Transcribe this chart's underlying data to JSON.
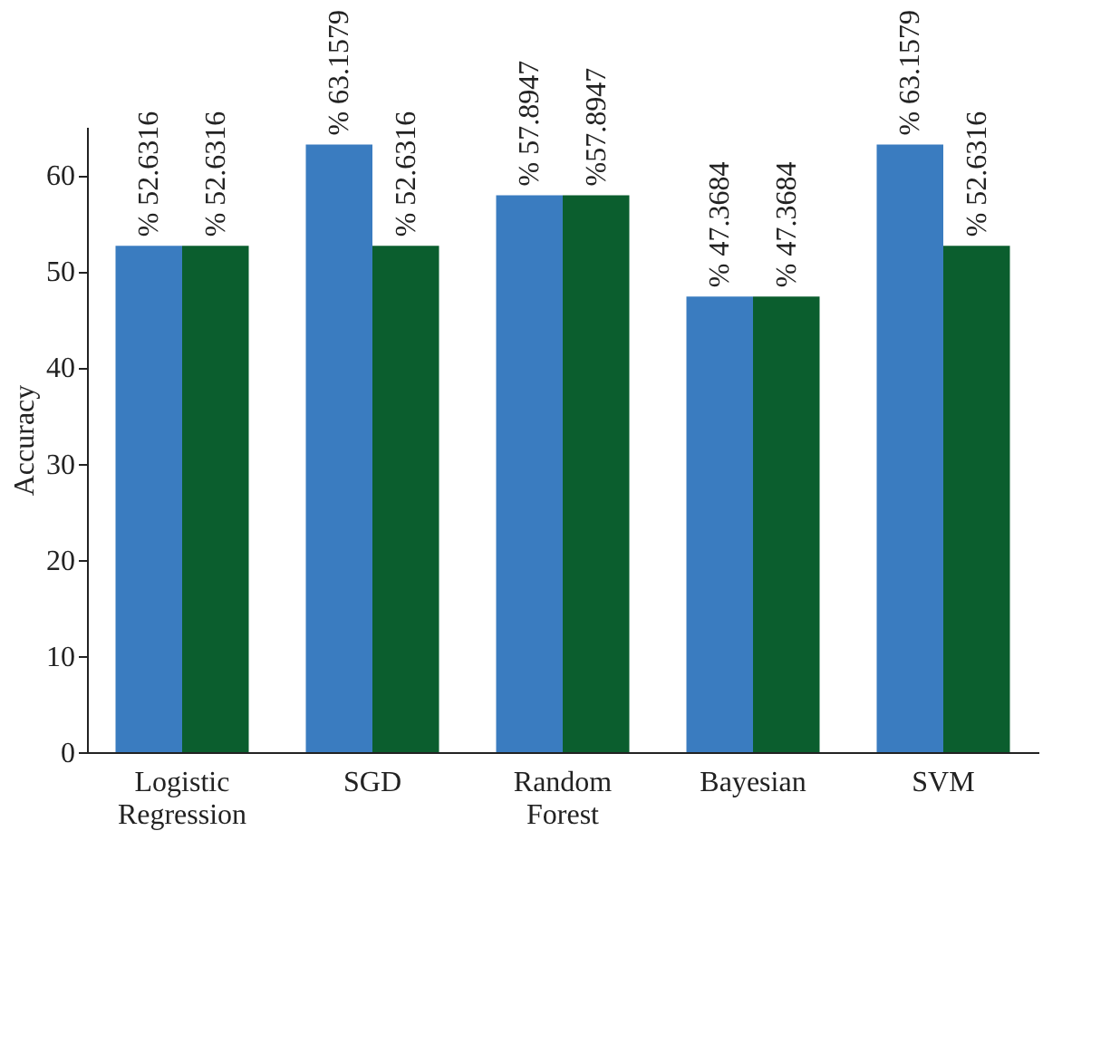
{
  "chart_data": {
    "type": "bar",
    "ylabel": "Accuracy",
    "categories": [
      "Logistic Regression",
      "SGD",
      "Random Forest",
      "Bayesian",
      "SVM"
    ],
    "series": [
      {
        "color": "#3a7cc0",
        "values": [
          52.6316,
          63.1579,
          57.8947,
          47.3684,
          63.1579
        ],
        "value_labels": [
          "% 52.6316",
          "% 63.1579",
          "% 57.8947",
          "% 47.3684",
          "% 63.1579"
        ]
      },
      {
        "color": "#0b5e2e",
        "values": [
          52.6316,
          52.6316,
          57.8947,
          47.3684,
          52.6316
        ],
        "value_labels": [
          "% 52.6316",
          "% 52.6316",
          "%57.8947",
          "% 47.3684",
          "% 52.6316"
        ]
      }
    ],
    "ylim": [
      0,
      65
    ],
    "yticks": [
      0,
      10,
      20,
      30,
      40,
      50,
      60
    ],
    "grid": false,
    "legend": false
  }
}
